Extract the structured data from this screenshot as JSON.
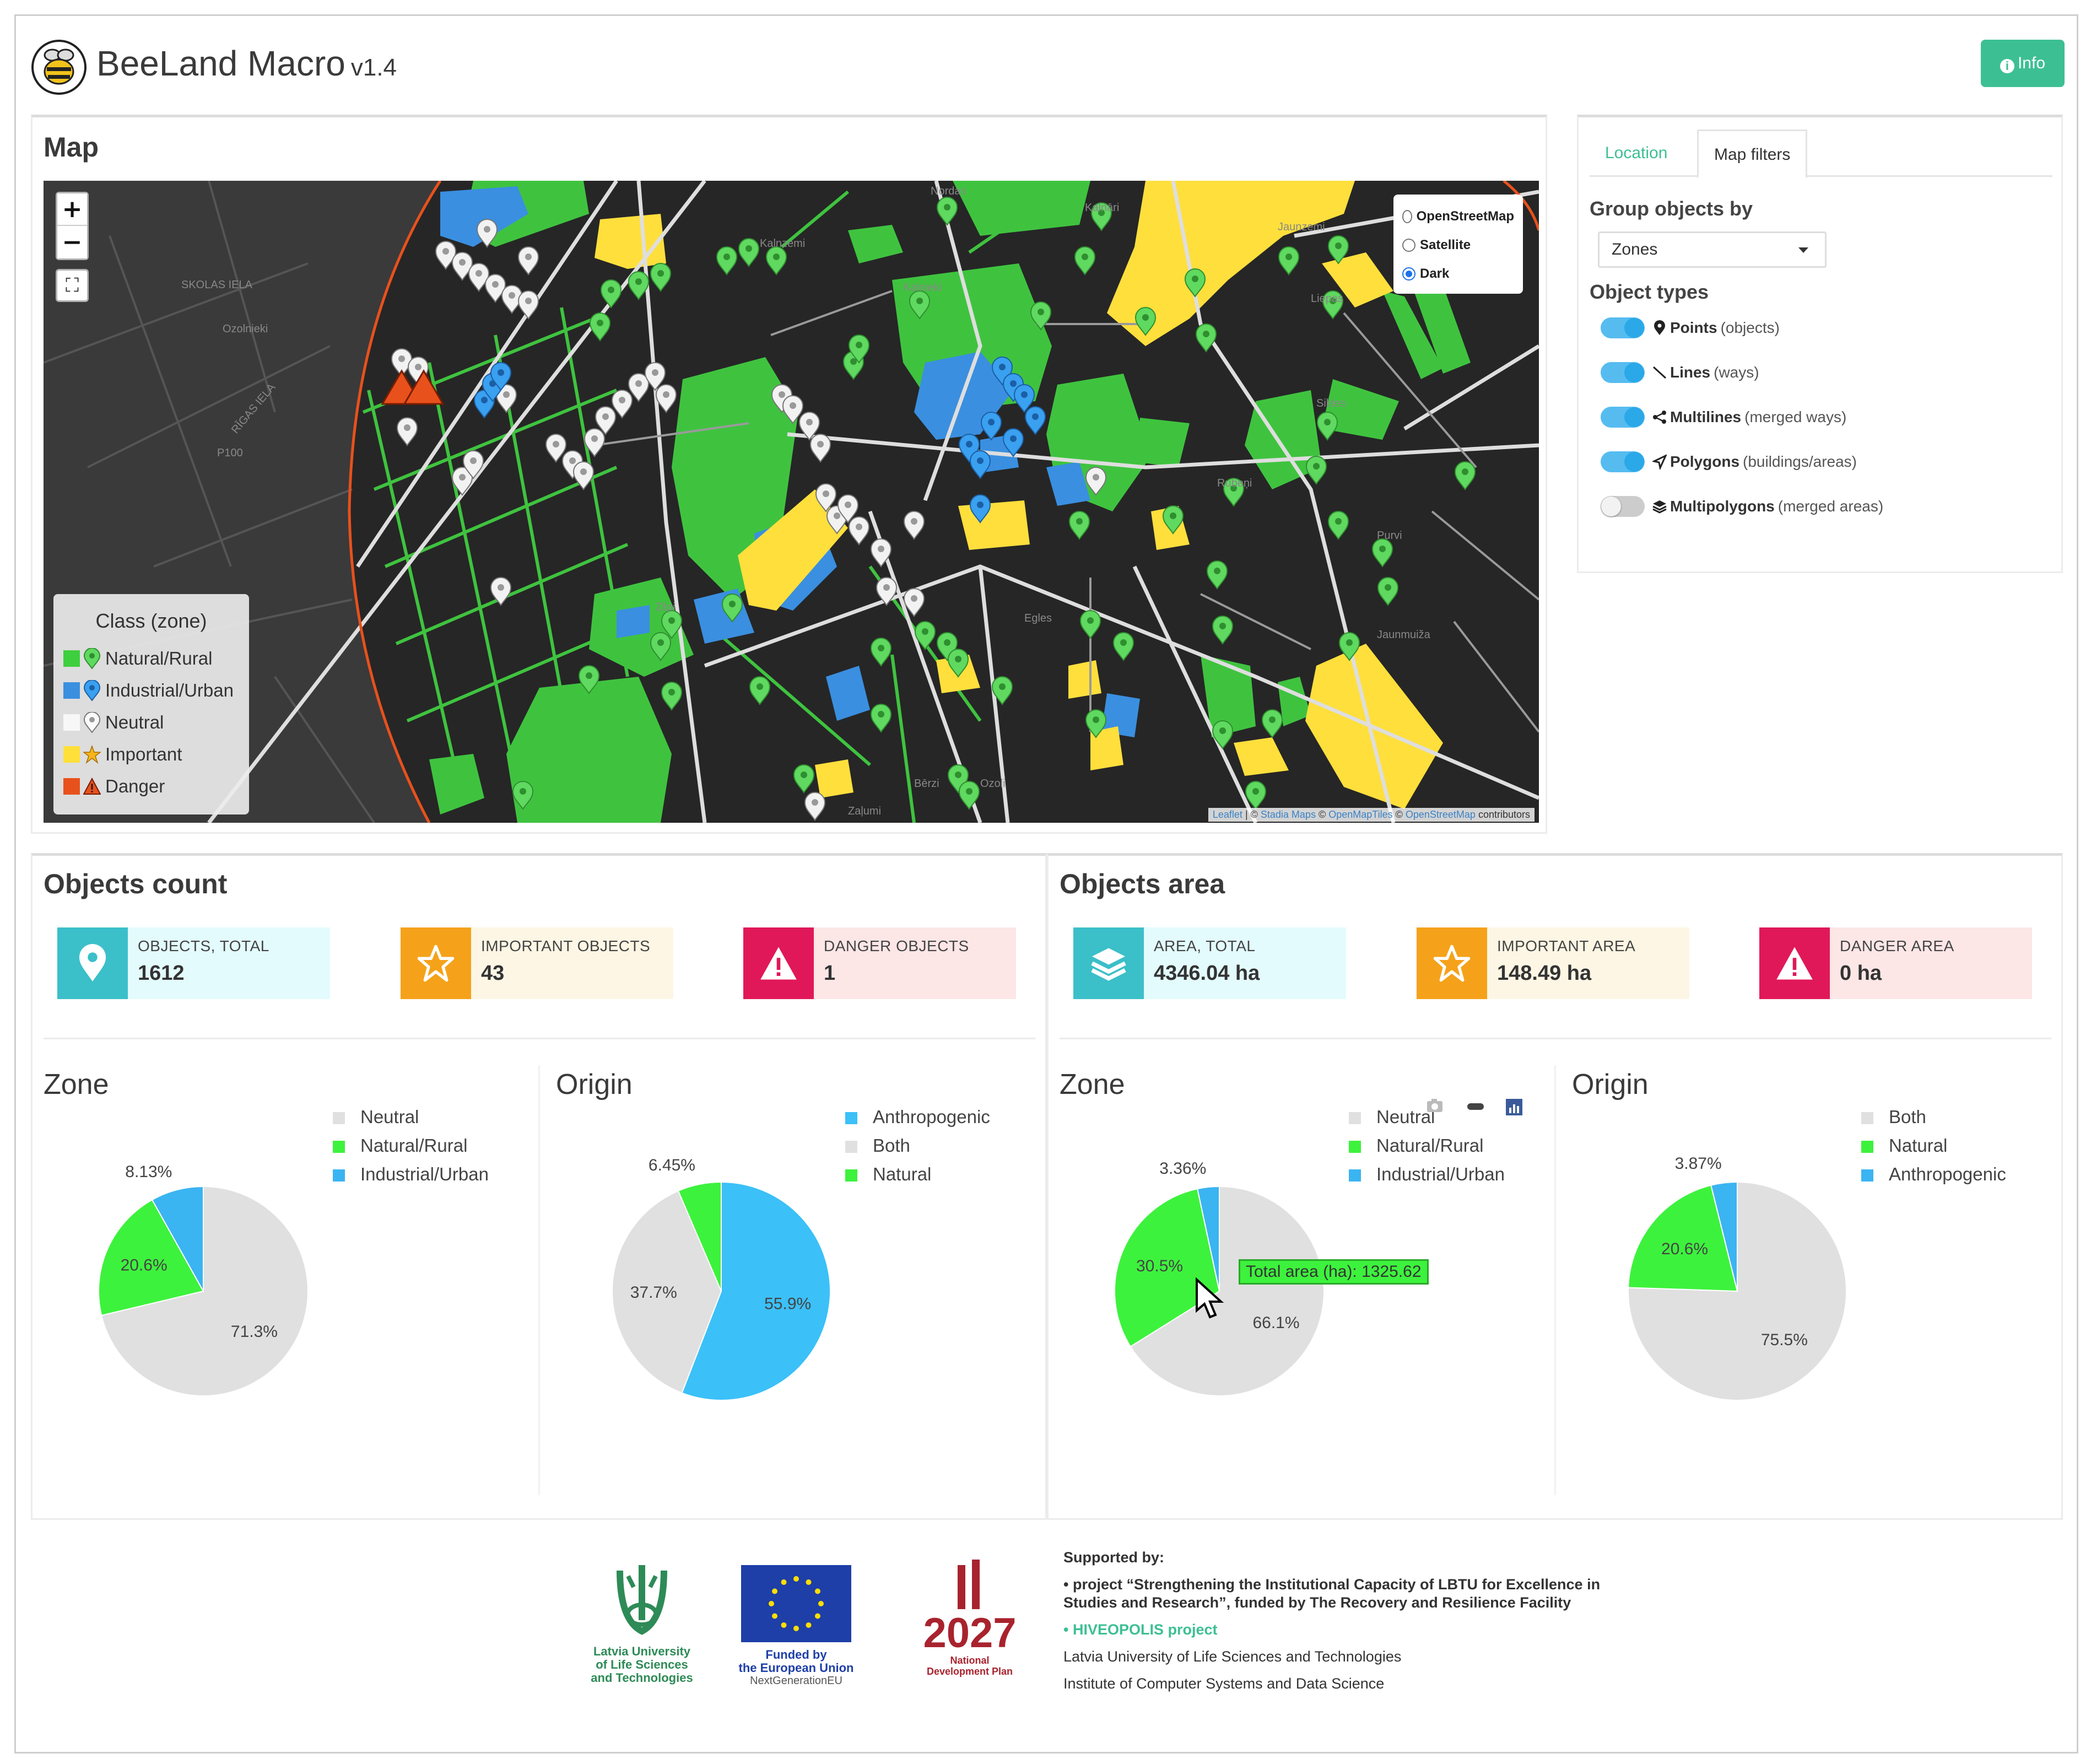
{
  "app": {
    "title": "BeeLand Macro",
    "version": "v1.4",
    "info_label": "Info"
  },
  "map": {
    "title": "Map",
    "zoom_in": "+",
    "zoom_out": "−",
    "fullscreen": "⛶",
    "layers": [
      "OpenStreetMap",
      "Satellite",
      "Dark"
    ],
    "selected_layer": "Dark",
    "place_labels": [
      "SKOLAS IELA",
      "Ozolnieki",
      "RĪGAS IELA",
      "P100",
      "Nordas",
      "Kalnāri",
      "Kalnzemi",
      "Kalnieki",
      "Rubeņi",
      "Jaunzemi",
      "Silites",
      "Purvi",
      "Zilpi",
      "Ozoli",
      "Zaļumi",
      "Liepas",
      "Egles",
      "Bērzi",
      "Jaunmuiža"
    ],
    "legend": {
      "title": "Class (zone)",
      "items": [
        {
          "label": "Natural/Rural",
          "color": "#3ecf3e"
        },
        {
          "label": "Industrial/Urban",
          "color": "#3a8fe0"
        },
        {
          "label": "Neutral",
          "color": "#ffffff"
        },
        {
          "label": "Important",
          "color": "#ffe03a"
        },
        {
          "label": "Danger",
          "color": "#e8511c"
        }
      ]
    },
    "attribution": {
      "leaflet": "Leaflet",
      "sep1": " | © ",
      "stadia": "Stadia Maps",
      "sep2": " © ",
      "omt": "OpenMapTiles",
      "sep3": " © ",
      "osm": "OpenStreetMap",
      "tail": " contributors"
    }
  },
  "filters": {
    "tabs": [
      "Location",
      "Map filters"
    ],
    "group_label": "Group objects by",
    "group_value": "Zones",
    "types_label": "Object types",
    "types": [
      {
        "name": "Points",
        "desc": "(objects)",
        "on": true,
        "icon": "map-marker-icon"
      },
      {
        "name": "Lines",
        "desc": "(ways)",
        "on": true,
        "icon": "line-icon"
      },
      {
        "name": "Multilines",
        "desc": "(merged ways)",
        "on": true,
        "icon": "share-nodes-icon"
      },
      {
        "name": "Polygons",
        "desc": "(buildings/areas)",
        "on": true,
        "icon": "location-arrow-icon"
      },
      {
        "name": "Multipolygons",
        "desc": "(merged areas)",
        "on": false,
        "icon": "layers-icon"
      }
    ]
  },
  "count": {
    "title": "Objects count",
    "boxes": [
      {
        "label": "OBJECTS, TOTAL",
        "value": "1612",
        "icon": "map-marker-icon",
        "color": "#3bbfc9",
        "bg": "#e3fbfd"
      },
      {
        "label": "IMPORTANT OBJECTS",
        "value": "43",
        "icon": "star-icon",
        "color": "#f5a21a",
        "bg": "#fdf6e4"
      },
      {
        "label": "DANGER OBJECTS",
        "value": "1",
        "icon": "warning-icon",
        "color": "#e0185a",
        "bg": "#fde6e6"
      }
    ],
    "zone_title": "Zone",
    "origin_title": "Origin"
  },
  "area": {
    "title": "Objects area",
    "boxes": [
      {
        "label": "AREA, TOTAL",
        "value": "4346.04 ha",
        "icon": "layers-icon",
        "color": "#3bbfc9",
        "bg": "#e3fbfd"
      },
      {
        "label": "IMPORTANT AREA",
        "value": "148.49 ha",
        "icon": "star-icon",
        "color": "#f5a21a",
        "bg": "#fdf6e4"
      },
      {
        "label": "DANGER AREA",
        "value": "0 ha",
        "icon": "warning-icon",
        "color": "#e0185a",
        "bg": "#fde6e6"
      }
    ],
    "zone_title": "Zone",
    "origin_title": "Origin",
    "tooltip": "Total area (ha): 1325.62",
    "toolbar_icons": [
      "camera-icon",
      "zoom-icon",
      "bar-chart-icon"
    ]
  },
  "chart_data": [
    {
      "type": "pie",
      "id": "count-zone",
      "title": "Zone",
      "categories": [
        "Neutral",
        "Natural/Rural",
        "Industrial/Urban"
      ],
      "values": [
        71.3,
        20.6,
        8.13
      ],
      "labels": [
        "71.3%",
        "20.6%",
        "8.13%"
      ],
      "colors": [
        "#e0e0e0",
        "#3df23d",
        "#3bb4f2"
      ],
      "legend": "top-right"
    },
    {
      "type": "pie",
      "id": "count-origin",
      "title": "Origin",
      "categories": [
        "Anthropogenic",
        "Both",
        "Natural"
      ],
      "values": [
        55.9,
        37.7,
        6.45
      ],
      "labels": [
        "55.9%",
        "37.7%",
        "6.45%"
      ],
      "colors": [
        "#3bc0f8",
        "#e0e0e0",
        "#3df23d"
      ],
      "legend": "top-right"
    },
    {
      "type": "pie",
      "id": "area-zone",
      "title": "Zone",
      "categories": [
        "Neutral",
        "Natural/Rural",
        "Industrial/Urban"
      ],
      "values": [
        66.1,
        30.5,
        3.36
      ],
      "labels": [
        "66.1%",
        "30.5%",
        "3.36%"
      ],
      "colors": [
        "#e0e0e0",
        "#3df23d",
        "#3bb4f2"
      ],
      "legend": "top-right"
    },
    {
      "type": "pie",
      "id": "area-origin",
      "title": "Origin",
      "categories": [
        "Both",
        "Natural",
        "Anthropogenic"
      ],
      "values": [
        75.5,
        20.6,
        3.87
      ],
      "labels": [
        "75.5%",
        "20.6%",
        "3.87%"
      ],
      "colors": [
        "#e0e0e0",
        "#3df23d",
        "#3bb4f2"
      ],
      "legend": "top-right"
    }
  ],
  "footer": {
    "lbtu": [
      "Latvia University",
      "of Life Sciences",
      "and Technologies"
    ],
    "eu": [
      "Funded by",
      "the European Union",
      "NextGenerationEU"
    ],
    "ndp": [
      "2027",
      "National",
      "Development Plan"
    ],
    "supported_by": "Supported by:",
    "project1": "• project “Strengthening the Institutional Capacity of LBTU for Excellence in Studies and Research”, funded by The Recovery and Resilience Facility",
    "project2": "• HIVEOPOLIS project",
    "org1": "Latvia University of Life Sciences and Technologies",
    "org2": "Institute of Computer Systems and Data Science"
  }
}
